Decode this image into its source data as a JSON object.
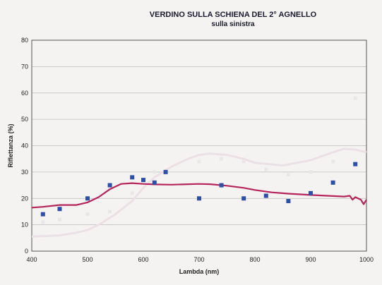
{
  "chart_data": {
    "type": "scatter",
    "title": "VERDINO SULLA SCHIENA DEL 2° AGNELLO",
    "subtitle": "sulla sinistra",
    "xlabel": "Lambda (nm)",
    "ylabel": "Riflettanza (%)",
    "xlim": [
      400,
      1000
    ],
    "ylim": [
      0,
      80
    ],
    "xticks": [
      400,
      500,
      600,
      700,
      800,
      900,
      1000
    ],
    "yticks": [
      0,
      10,
      20,
      30,
      40,
      50,
      60,
      70,
      80
    ],
    "grid": "horizontal",
    "series": [
      {
        "kind": "scatter",
        "color": "#2e4fa8",
        "x": [
          420,
          450,
          500,
          540,
          580,
          600,
          620,
          640,
          700,
          740,
          780,
          820,
          860,
          900,
          940,
          980
        ],
        "y": [
          14,
          16,
          20,
          25,
          28,
          27,
          26,
          30,
          20,
          25,
          20,
          21,
          19,
          22,
          26,
          33
        ]
      },
      {
        "kind": "line",
        "color": "#b5245a",
        "x": [
          400,
          420,
          450,
          480,
          500,
          520,
          540,
          560,
          580,
          600,
          620,
          650,
          700,
          720,
          750,
          780,
          800,
          830,
          860,
          900,
          930,
          960,
          970,
          975,
          980,
          990,
          995,
          1000
        ],
        "y": [
          16.5,
          16.8,
          17.5,
          17.5,
          18.5,
          20.5,
          23.5,
          25.5,
          25.8,
          25.5,
          25.3,
          25.2,
          25.5,
          25.4,
          24.8,
          24,
          23.2,
          22.3,
          21.8,
          21.3,
          21,
          20.7,
          21,
          19.5,
          20.5,
          19.5,
          17.8,
          19.5
        ]
      },
      {
        "kind": "line",
        "color": "#ebe0e6",
        "x": [
          400,
          450,
          480,
          500,
          520,
          550,
          580,
          600,
          620,
          650,
          680,
          700,
          720,
          750,
          780,
          800,
          850,
          900,
          940,
          960,
          980,
          1000
        ],
        "y": [
          5.5,
          6,
          7,
          8,
          10,
          14,
          19,
          24,
          28,
          32,
          35,
          36.5,
          37,
          36.5,
          35,
          33.5,
          32.5,
          34.5,
          37.5,
          38.8,
          38.5,
          37.5
        ]
      },
      {
        "kind": "scatter",
        "color": "#e9e6ea",
        "x": [
          420,
          450,
          500,
          540,
          580,
          620,
          700,
          740,
          780,
          820,
          860,
          900,
          940,
          980
        ],
        "y": [
          11,
          12,
          14,
          15,
          22,
          30,
          34,
          35,
          34,
          31,
          29,
          30,
          34,
          58
        ]
      }
    ]
  }
}
